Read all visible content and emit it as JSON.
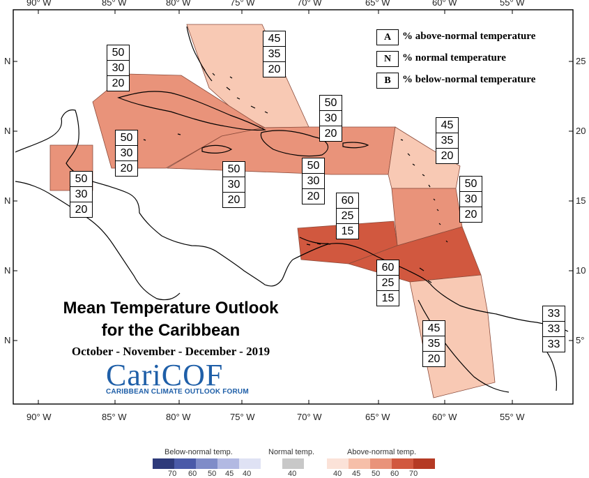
{
  "map": {
    "title": "Mean Temperature Outlook",
    "title_line2": "for the Caribbean",
    "period": "October - November - December - 2019",
    "logo": "CariCOF",
    "logo_subtitle": "CARIBBEAN CLIMATE OUTLOOK FORUM",
    "lon_ticks": [
      "90° W",
      "85° W",
      "80° W",
      "75° W",
      "70° W",
      "65° W",
      "60° W",
      "55° W"
    ],
    "lat_ticks_left": [
      "N",
      "N",
      "N",
      "N",
      "N"
    ],
    "lat_ticks_right": [
      "25",
      "20",
      "15",
      "10",
      "5°"
    ]
  },
  "key": [
    {
      "letter": "A",
      "text": "% above-normal temperature"
    },
    {
      "letter": "N",
      "text": "% normal temperature"
    },
    {
      "letter": "B",
      "text": "% below-normal temperature"
    }
  ],
  "regions": [
    {
      "id": "bahamas",
      "above": "45",
      "normal": "35",
      "below": "20",
      "color": "#f8c9b4"
    },
    {
      "id": "cuba",
      "above": "50",
      "normal": "30",
      "below": "20",
      "color": "#e9937a"
    },
    {
      "id": "cayman",
      "above": "50",
      "normal": "30",
      "below": "20",
      "color": "#e9937a"
    },
    {
      "id": "belize",
      "above": "50",
      "normal": "30",
      "below": "20",
      "color": "#e9937a"
    },
    {
      "id": "jamaica",
      "above": "50",
      "normal": "30",
      "below": "20",
      "color": "#e9937a"
    },
    {
      "id": "hispaniola",
      "above": "50",
      "normal": "30",
      "below": "20",
      "color": "#e9937a"
    },
    {
      "id": "puerto-rico",
      "above": "50",
      "normal": "30",
      "below": "20",
      "color": "#e9937a"
    },
    {
      "id": "leeward",
      "above": "45",
      "normal": "35",
      "below": "20",
      "color": "#f8c9b4"
    },
    {
      "id": "windward",
      "above": "50",
      "normal": "30",
      "below": "20",
      "color": "#e9937a"
    },
    {
      "id": "abc-islands",
      "above": "60",
      "normal": "25",
      "below": "15",
      "color": "#d1583f"
    },
    {
      "id": "trinidad",
      "above": "60",
      "normal": "25",
      "below": "15",
      "color": "#d1583f"
    },
    {
      "id": "guianas",
      "above": "45",
      "normal": "35",
      "below": "20",
      "color": "#f8c9b4"
    },
    {
      "id": "french-guiana",
      "above": "33",
      "normal": "33",
      "below": "33",
      "color": "#ffffff"
    }
  ],
  "scale": {
    "below_title": "Below-normal temp.",
    "normal_title": "Normal temp.",
    "above_title": "Above-normal temp.",
    "below_ticks": [
      "70",
      "60",
      "50",
      "45",
      "40"
    ],
    "normal_ticks": [
      "40"
    ],
    "above_ticks": [
      "40",
      "45",
      "50",
      "60",
      "70"
    ],
    "below_colors": [
      "#2e3a7a",
      "#4a5aa8",
      "#7f8cc8",
      "#b2b9e2",
      "#dfe2f4"
    ],
    "normal_color": "#c8c8c8",
    "above_colors": [
      "#fbe2d8",
      "#f6bfa9",
      "#e9937a",
      "#d1583f",
      "#b53a24"
    ]
  }
}
